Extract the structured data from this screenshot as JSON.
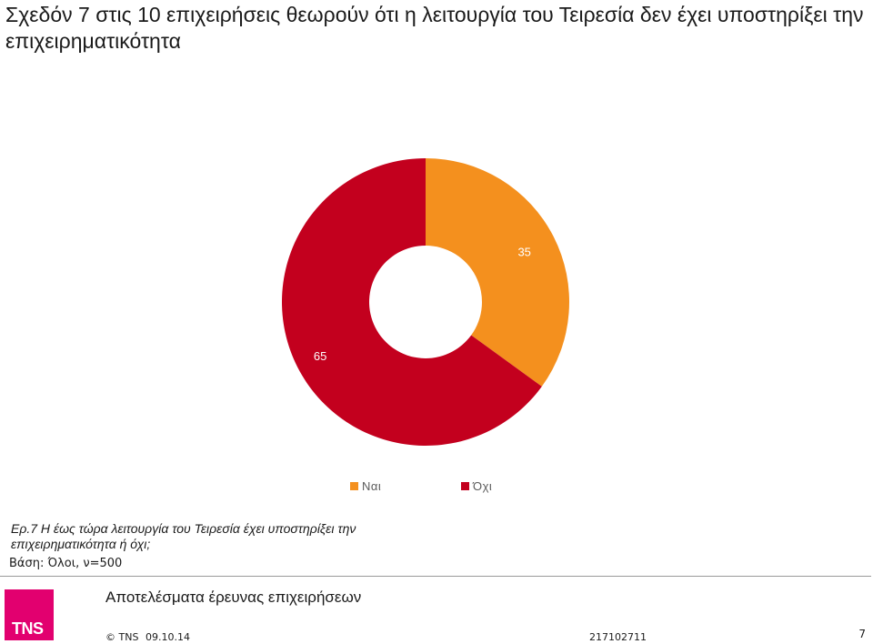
{
  "title": "Σχεδόν 7 στις 10 επιχειρήσεις θεωρούν ότι η λειτουργία του Τειρεσία δεν έχει υποστηρίξει την επιχειρηματικότητα",
  "chart_data": {
    "type": "pie",
    "subtype": "donut",
    "slices": [
      {
        "label": "Ναι",
        "value": 35,
        "color": "#f4901e"
      },
      {
        "label": "Όχι",
        "value": 65,
        "color": "#c3001e"
      }
    ],
    "legend": [
      "Ναι",
      "Όχι"
    ],
    "legend_position": "bottom"
  },
  "question": "Ερ.7 Η έως τώρα λειτουργία του Τειρεσία έχει υποστηρίξει την επιχειρηματικότητα ή όχι;",
  "base": "Βάση: Όλοι, ν=500",
  "footer": {
    "survey_title": "Αποτελέσματα έρευνας επιχειρήσεων",
    "logo_text": "TNS",
    "copyright": "© TNS",
    "date": "09.10.14",
    "job_number": "217102711",
    "page_number": "7"
  }
}
